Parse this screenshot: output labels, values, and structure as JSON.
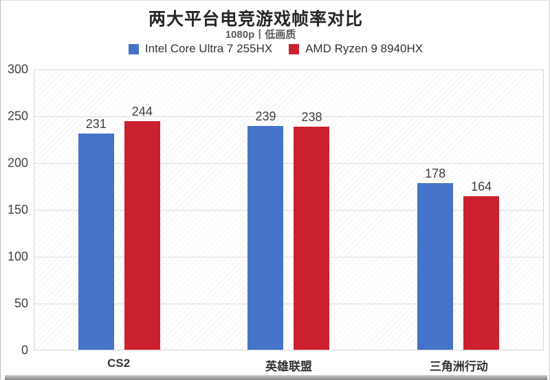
{
  "chart_data": {
    "type": "bar",
    "title": "两大平台电竞游戏帧率对比",
    "subtitle": "1080p丨低画质",
    "categories": [
      "CS2",
      "英雄联盟",
      "三角洲行动"
    ],
    "series": [
      {
        "name": "Intel Core Ultra 7 255HX",
        "color": "#4573C8",
        "values": [
          231,
          239,
          178
        ]
      },
      {
        "name": "AMD Ryzen 9 8940HX",
        "color": "#CB202D",
        "values": [
          244,
          238,
          164
        ]
      }
    ],
    "xlabel": "",
    "ylabel": "",
    "ylim": [
      0,
      300
    ],
    "ytick_step": 50,
    "yticks": [
      0,
      50,
      100,
      150,
      200,
      250,
      300
    ],
    "grid": "horizontal",
    "legend_position": "top",
    "plot_background": "diagonal-hatch",
    "value_labels": "above-bars"
  }
}
